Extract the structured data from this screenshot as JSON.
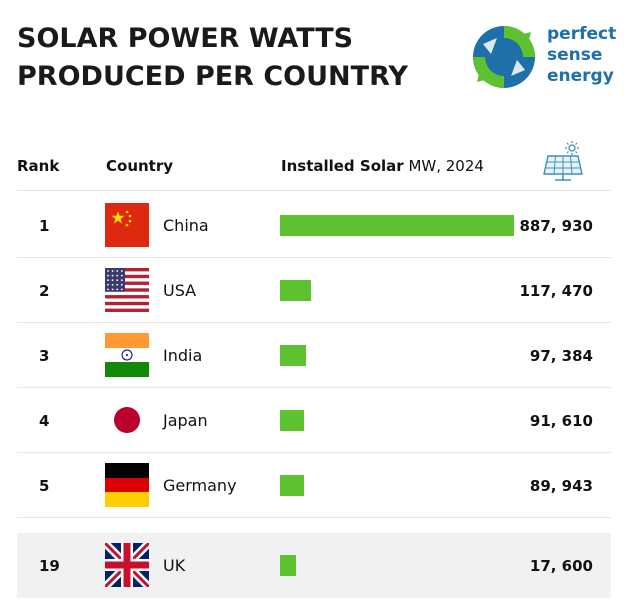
{
  "header": {
    "title_line1": "SOLAR POWER WATTS",
    "title_line2": "PRODUCED PER COUNTRY",
    "logo_line1": "perfect",
    "logo_line2": "sense",
    "logo_line3": "energy"
  },
  "columns": {
    "rank": "Rank",
    "country": "Country",
    "solar_bold": "Installed Solar",
    "solar_unit": "MW, 2024"
  },
  "icons": {
    "logo": "recycle-arrows-logo-icon",
    "panel": "solar-panel-icon"
  },
  "colors": {
    "bar": "#5ec130",
    "logo_blue": "#1f6fa8",
    "logo_green": "#5ec130"
  },
  "chart_data": {
    "type": "bar",
    "orientation": "horizontal",
    "title": "SOLAR POWER WATTS PRODUCED PER COUNTRY",
    "xlabel": "Installed Solar MW, 2024",
    "categories": [
      "China",
      "USA",
      "India",
      "Japan",
      "Germany",
      "UK"
    ],
    "ranks": [
      "1",
      "2",
      "3",
      "4",
      "5",
      "19"
    ],
    "values": [
      887930,
      117470,
      97384,
      91610,
      89943,
      17600
    ],
    "value_labels": [
      "887, 930",
      "117, 470",
      "97, 384",
      "91, 610",
      "89, 943",
      "17, 600"
    ],
    "flag_icons": [
      "china-flag-icon",
      "usa-flag-icon",
      "india-flag-icon",
      "japan-flag-icon",
      "germany-flag-icon",
      "uk-flag-icon"
    ],
    "xlim": [
      0,
      887930
    ],
    "grid": false,
    "highlighted_category": "UK"
  }
}
